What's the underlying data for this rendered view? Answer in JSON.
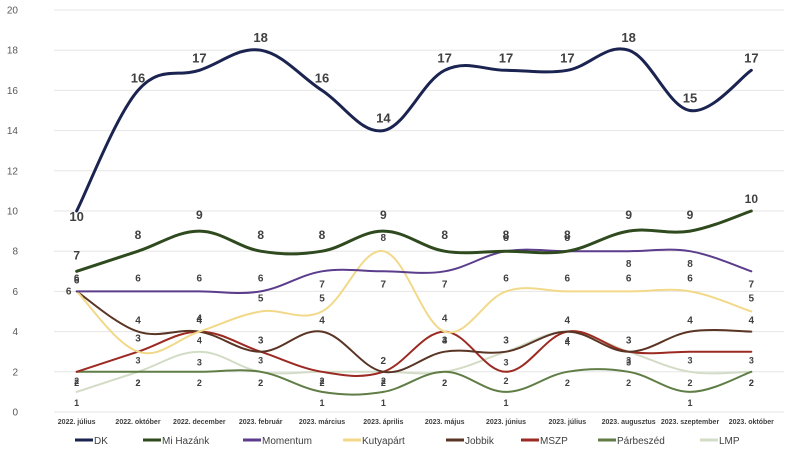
{
  "chart_data": {
    "type": "line",
    "title": "",
    "xlabel": "",
    "ylabel": "",
    "ylim": [
      0,
      20
    ],
    "yticks": [
      0,
      2,
      4,
      6,
      8,
      10,
      12,
      14,
      16,
      18,
      20
    ],
    "grid": true,
    "smooth": true,
    "legend_position": "bottom",
    "categories": [
      "2022. július",
      "2022. október",
      "2022. december",
      "2023. február",
      "2023. március",
      "2023. április",
      "2023. május",
      "2023. június",
      "2023. július",
      "2023. augusztus",
      "2023. szeptember",
      "2023. október"
    ],
    "series": [
      {
        "name": "DK",
        "color": "#1b2350",
        "values": [
          10,
          16,
          17,
          18,
          16,
          14,
          17,
          17,
          17,
          18,
          15,
          17
        ]
      },
      {
        "name": "Mi Hazánk",
        "color": "#2f4a1e",
        "values": [
          7,
          8,
          9,
          8,
          8,
          9,
          8,
          8,
          8,
          9,
          9,
          10
        ]
      },
      {
        "name": "Momentum",
        "color": "#5b3d8c",
        "values": [
          6,
          6,
          6,
          6,
          7,
          7,
          7,
          8,
          8,
          8,
          8,
          7
        ]
      },
      {
        "name": "Kutyapárt",
        "color": "#f2d98a",
        "values": [
          6,
          3,
          4,
          5,
          5,
          8,
          4,
          6,
          6,
          6,
          6,
          5
        ]
      },
      {
        "name": "Jobbik",
        "color": "#5a3424",
        "values": [
          6,
          4,
          4,
          3,
          4,
          2,
          3,
          3,
          4,
          3,
          4,
          4
        ]
      },
      {
        "name": "MSZP",
        "color": "#9b2a22",
        "values": [
          2,
          3,
          4,
          3,
          2,
          2,
          4,
          2,
          4,
          3,
          3,
          3
        ]
      },
      {
        "name": "Párbeszéd",
        "color": "#5f7d45",
        "values": [
          2,
          2,
          2,
          2,
          1,
          1,
          2,
          1,
          2,
          2,
          1,
          2
        ]
      },
      {
        "name": "LMP",
        "color": "#d3dcc6",
        "values": [
          1,
          2,
          3,
          2,
          2,
          2,
          2,
          3,
          4,
          3,
          2,
          2
        ]
      }
    ]
  }
}
